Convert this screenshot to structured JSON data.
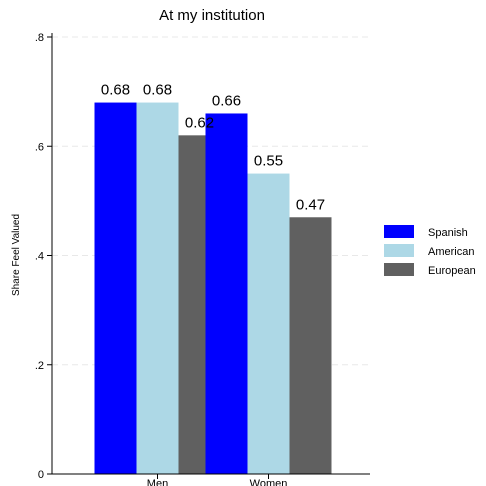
{
  "chart_data": {
    "type": "bar",
    "title": "At my institution",
    "xlabel": "",
    "ylabel": "Share Feel Valued",
    "categories": [
      "Men",
      "Women"
    ],
    "series": [
      {
        "name": "Spanish",
        "values": [
          0.68,
          0.66
        ],
        "color": "#0000ff"
      },
      {
        "name": "American",
        "values": [
          0.68,
          0.55
        ],
        "color": "#add8e6"
      },
      {
        "name": "European",
        "values": [
          0.62,
          0.47
        ],
        "color": "#606060"
      }
    ],
    "data_labels": [
      [
        "0.68",
        "0.66"
      ],
      [
        "0.68",
        "0.55"
      ],
      [
        "0.62",
        "0.47"
      ]
    ],
    "ylim": [
      0,
      0.8
    ],
    "yticks": [
      0,
      0.2,
      0.4,
      0.6,
      0.8
    ],
    "ytick_labels": [
      "0",
      ".2",
      ".4",
      ".6",
      ".8"
    ],
    "grid": true,
    "legend_position": "right"
  }
}
